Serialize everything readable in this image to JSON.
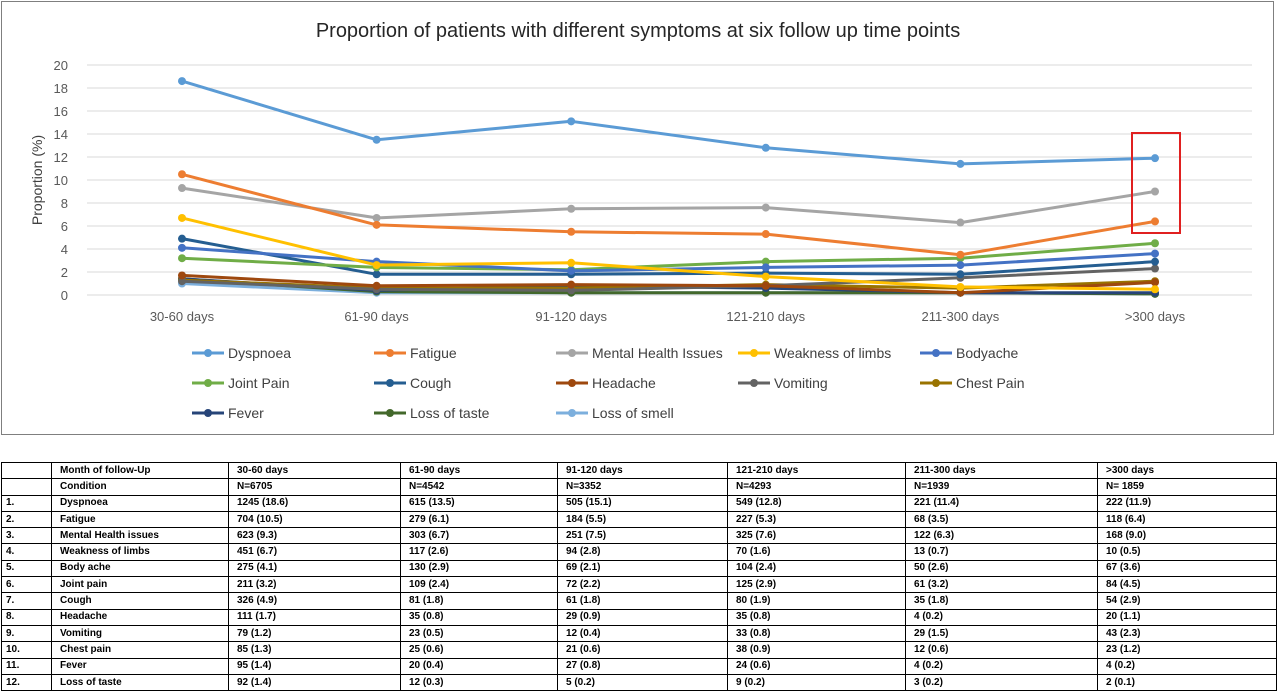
{
  "chart_data": {
    "type": "line",
    "title": "Proportion of patients with different symptoms at six follow up time points",
    "xlabel": "",
    "ylabel": "Proportion (%)",
    "ylim": [
      0,
      20
    ],
    "yticks": [
      "0",
      "2",
      "4",
      "6",
      "8",
      "10",
      "12",
      "14",
      "16",
      "18",
      "20"
    ],
    "grid": true,
    "legend_position": "bottom",
    "categories": [
      "30-60 days",
      "61-90 days",
      "91-120 days",
      "121-210 days",
      "211-300 days",
      ">300 days"
    ],
    "series": [
      {
        "name": "Dyspnoea",
        "color": "#5b9bd5",
        "values": [
          18.6,
          13.5,
          15.1,
          12.8,
          11.4,
          11.9
        ]
      },
      {
        "name": "Fatigue",
        "color": "#ed7d31",
        "values": [
          10.5,
          6.1,
          5.5,
          5.3,
          3.5,
          6.4
        ]
      },
      {
        "name": "Mental Health Issues",
        "color": "#a5a5a5",
        "values": [
          9.3,
          6.7,
          7.5,
          7.6,
          6.3,
          9.0
        ]
      },
      {
        "name": "Weakness of limbs",
        "color": "#ffc000",
        "values": [
          6.7,
          2.6,
          2.8,
          1.6,
          0.7,
          0.5
        ]
      },
      {
        "name": "Bodyache",
        "color": "#4472c4",
        "values": [
          4.1,
          2.9,
          2.1,
          2.4,
          2.6,
          3.6
        ]
      },
      {
        "name": "Joint Pain",
        "color": "#70ad47",
        "values": [
          3.2,
          2.4,
          2.2,
          2.9,
          3.2,
          4.5
        ]
      },
      {
        "name": "Cough",
        "color": "#255e91",
        "values": [
          4.9,
          1.8,
          1.8,
          1.9,
          1.8,
          2.9
        ]
      },
      {
        "name": "Headache",
        "color": "#9e480e",
        "values": [
          1.7,
          0.8,
          0.9,
          0.8,
          0.2,
          1.1
        ]
      },
      {
        "name": "Vomiting",
        "color": "#636363",
        "values": [
          1.2,
          0.5,
          0.4,
          0.8,
          1.5,
          2.3
        ]
      },
      {
        "name": "Chest Pain",
        "color": "#997300",
        "values": [
          1.3,
          0.6,
          0.6,
          0.9,
          0.6,
          1.2
        ]
      },
      {
        "name": "Fever",
        "color": "#264478",
        "values": [
          1.4,
          0.4,
          0.8,
          0.6,
          0.2,
          0.2
        ]
      },
      {
        "name": "Loss of taste",
        "color": "#43682b",
        "values": [
          1.4,
          0.3,
          0.2,
          0.2,
          0.2,
          0.1
        ]
      },
      {
        "name": "Loss of smell",
        "color": "#7cafdd",
        "values": [
          1.0,
          0.2,
          0.2,
          0.2,
          0.2,
          0.1
        ]
      }
    ],
    "annotation": {
      "type": "highlight-box",
      "category": ">300 days",
      "color": "#e02020"
    }
  },
  "table": {
    "header1": [
      "",
      "Month of follow-Up",
      "30-60 days",
      "61-90 days",
      "91-120 days",
      "121-210 days",
      "211-300 days",
      ">300 days"
    ],
    "header2": [
      "",
      "Condition",
      "N=6705",
      "N=4542",
      "N=3352",
      "N=4293",
      "N=1939",
      "N= 1859"
    ],
    "rows": [
      [
        "1.",
        "Dyspnoea",
        "1245 (18.6)",
        "615 (13.5)",
        "505 (15.1)",
        "549 (12.8)",
        "221 (11.4)",
        "222 (11.9)"
      ],
      [
        "2.",
        "Fatigue",
        "704 (10.5)",
        "279 (6.1)",
        "184 (5.5)",
        "227 (5.3)",
        "68 (3.5)",
        "118 (6.4)"
      ],
      [
        "3.",
        "Mental Health issues",
        "623 (9.3)",
        "303 (6.7)",
        "251 (7.5)",
        "325 (7.6)",
        "122 (6.3)",
        "168 (9.0)"
      ],
      [
        "4.",
        "Weakness of limbs",
        "451 (6.7)",
        "117 (2.6)",
        "94 (2.8)",
        "70 (1.6)",
        "13 (0.7)",
        "10 (0.5)"
      ],
      [
        "5.",
        "Body ache",
        "275 (4.1)",
        "130 (2.9)",
        "69 (2.1)",
        "104 (2.4)",
        "50 (2.6)",
        "67 (3.6)"
      ],
      [
        "6.",
        "Joint pain",
        "211 (3.2)",
        "109 (2.4)",
        "72 (2.2)",
        "125 (2.9)",
        "61 (3.2)",
        "84 (4.5)"
      ],
      [
        "7.",
        "Cough",
        "326 (4.9)",
        "81 (1.8)",
        "61 (1.8)",
        "80 (1.9)",
        "35 (1.8)",
        "54 (2.9)"
      ],
      [
        "8.",
        "Headache",
        "111 (1.7)",
        "35 (0.8)",
        "29 (0.9)",
        "35 (0.8)",
        "4 (0.2)",
        "20 (1.1)"
      ],
      [
        "9.",
        "Vomiting",
        "79 (1.2)",
        "23 (0.5)",
        "12 (0.4)",
        "33 (0.8)",
        "29 (1.5)",
        "43 (2.3)"
      ],
      [
        "10.",
        "Chest pain",
        "85 (1.3)",
        "25 (0.6)",
        "21 (0.6)",
        "38 (0.9)",
        "12 (0.6)",
        "23 (1.2)"
      ],
      [
        "11.",
        "Fever",
        "95 (1.4)",
        "20 (0.4)",
        "27 (0.8)",
        "24 (0.6)",
        "4 (0.2)",
        "4 (0.2)"
      ],
      [
        "12.",
        "Loss of taste",
        "92 (1.4)",
        "12 (0.3)",
        "5 (0.2)",
        "9 (0.2)",
        "3 (0.2)",
        "2 (0.1)"
      ]
    ]
  }
}
